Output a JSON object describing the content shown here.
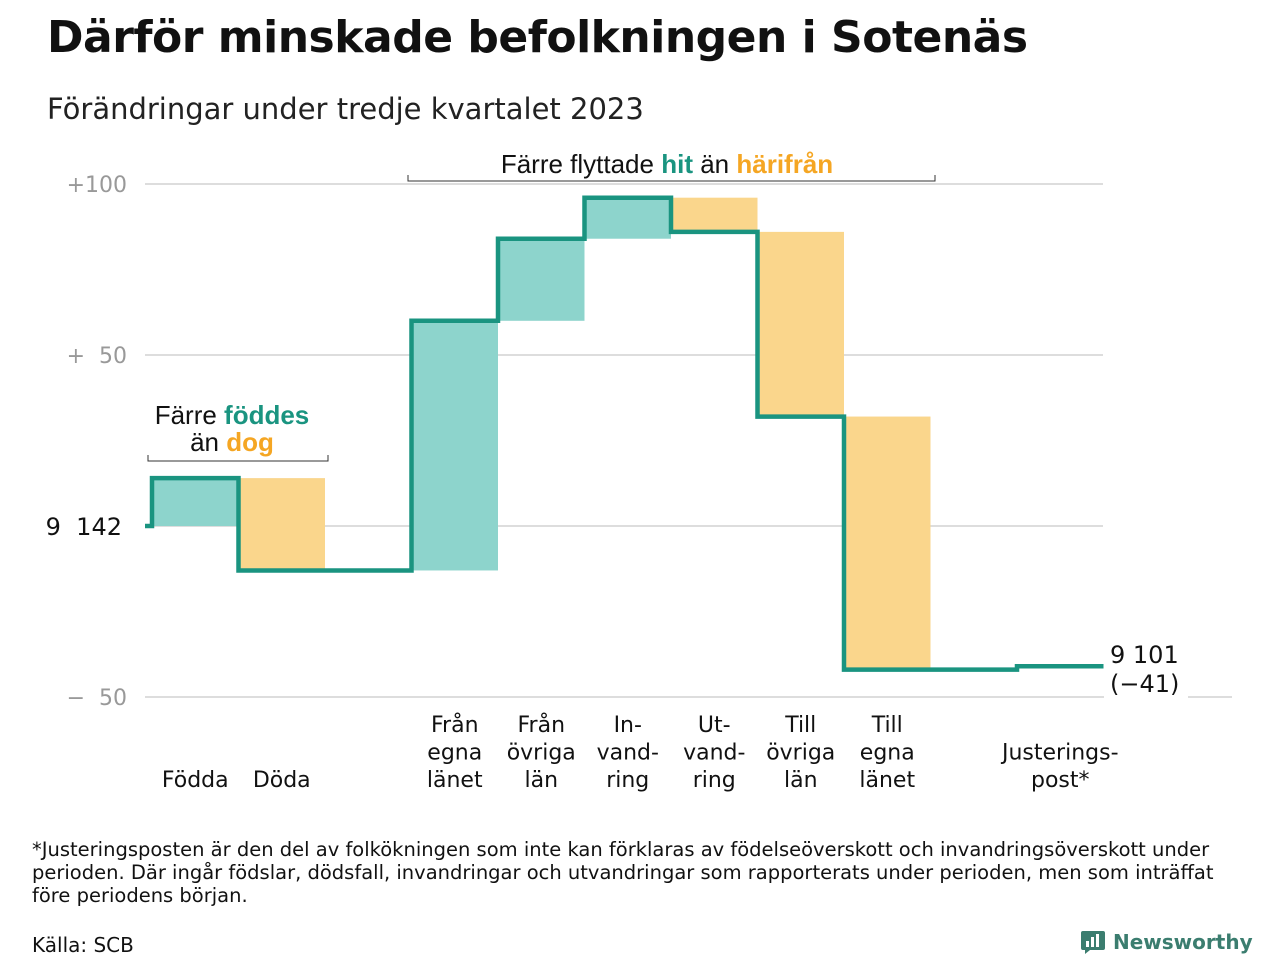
{
  "title": "Därför minskade befolkningen i Sotenäs",
  "subtitle": "Förändringar under tredje kvartalet 2023",
  "chart_data": {
    "type": "waterfall",
    "start_value": 9142,
    "start_label": "9  142",
    "end_value": 9101,
    "end_label": "9 101",
    "end_change_label": "(−41)",
    "ylim": [
      -50,
      100
    ],
    "y_ticks": [
      {
        "value": 100,
        "label": "+100"
      },
      {
        "value": 50,
        "label": "+  50"
      },
      {
        "value": -50,
        "label": "−  50"
      }
    ],
    "steps": [
      {
        "category": [
          "Födda"
        ],
        "change": 14,
        "kind": "inflow"
      },
      {
        "category": [
          "Döda"
        ],
        "change": -27,
        "kind": "outflow"
      },
      {
        "category": [],
        "change": 0,
        "kind": "none"
      },
      {
        "category": [
          "Från",
          "egna",
          "länet"
        ],
        "change": 73,
        "kind": "inflow"
      },
      {
        "category": [
          "Från",
          "övriga",
          "län"
        ],
        "change": 24,
        "kind": "inflow"
      },
      {
        "category": [
          "In-",
          "vand-",
          "ring"
        ],
        "change": 12,
        "kind": "inflow"
      },
      {
        "category": [
          "Ut-",
          "vand-",
          "ring"
        ],
        "change": -10,
        "kind": "outflow"
      },
      {
        "category": [
          "Till",
          "övriga",
          "län"
        ],
        "change": -54,
        "kind": "outflow"
      },
      {
        "category": [
          "Till",
          "egna",
          "länet"
        ],
        "change": -74,
        "kind": "outflow"
      },
      {
        "category": [],
        "change": 0,
        "kind": "none"
      },
      {
        "category": [
          "Justerings-",
          "post*"
        ],
        "change": 1,
        "kind": "adjustment"
      }
    ],
    "annotations": {
      "births": {
        "prefix": "Färre ",
        "highlight1": "föddes",
        "middle": "än ",
        "highlight2": "dog"
      },
      "migration": {
        "prefix": "Färre flyttade ",
        "highlight1": "hit",
        "middle": " än ",
        "highlight2": "härifrån"
      }
    },
    "colors": {
      "line": "#1a9480",
      "inflow_fill": "#8dd4cc",
      "outflow_fill": "#fad68c",
      "hit_text": "#1a9480",
      "out_text": "#f5a623",
      "grid": "#dddddd",
      "tick_label": "#999999"
    },
    "grid": true
  },
  "footnote": "*Justeringsposten är den del av folkökningen som inte kan förklaras av födelseöverskott och invandringsöverskott under perioden. Där ingår födslar, dödsfall, invandringar och utvandringar som rapporterats under perioden, men som inträffat före periodens början.",
  "source": "Källa: SCB",
  "logo_text": "Newsworthy",
  "logo_icon": "newsworthy-logo-icon"
}
